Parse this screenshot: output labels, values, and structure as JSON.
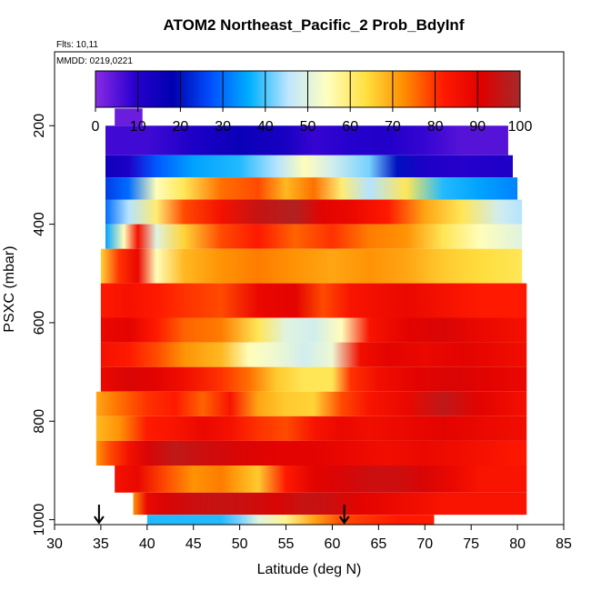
{
  "chart_data": {
    "type": "heatmap",
    "title": "ATOM2 Northeast_Pacific_2 Prob_BdyInf",
    "annotations": [
      "Flts: 10,11",
      "MMDD: 0219,0221"
    ],
    "xlabel": "Latitude (deg N)",
    "ylabel": "PSXC (mbar)",
    "xlim": [
      30,
      85
    ],
    "ylim": [
      1010,
      50
    ],
    "y_inverted": true,
    "x_ticks": [
      30,
      35,
      40,
      45,
      50,
      55,
      60,
      65,
      70,
      75,
      80,
      85
    ],
    "y_ticks": [
      200,
      400,
      600,
      800,
      1000
    ],
    "colorbar": {
      "min": 0,
      "max": 100,
      "ticks": [
        0,
        10,
        20,
        30,
        40,
        50,
        60,
        70,
        80,
        90,
        100
      ],
      "colors": [
        "#8a2be2",
        "#2a00d0",
        "#0000b0",
        "#0050ff",
        "#00b0ff",
        "#bfe6ff",
        "#ffffc0",
        "#ffe040",
        "#ff8c00",
        "#ff1a00",
        "#e00000",
        "#a52a2a"
      ]
    },
    "arrows_latitude": [
      34.8,
      61.3
    ],
    "bands": [
      {
        "p_top": 165,
        "p_bot": 200,
        "x_start": 36.5,
        "x_end": 39.5,
        "values": [
          [
            36.5,
            3
          ],
          [
            39.5,
            3
          ]
        ]
      },
      {
        "p_top": 200,
        "p_bot": 260,
        "x_start": 35.5,
        "x_end": 79.0,
        "values": [
          [
            35.5,
            7
          ],
          [
            40,
            7
          ],
          [
            45,
            12
          ],
          [
            50,
            16
          ],
          [
            55,
            13
          ],
          [
            58,
            8
          ],
          [
            62,
            10
          ],
          [
            66,
            11
          ],
          [
            70,
            8
          ],
          [
            74,
            5
          ],
          [
            79,
            5
          ]
        ]
      },
      {
        "p_top": 260,
        "p_bot": 305,
        "x_start": 35.5,
        "x_end": 79.5,
        "values": [
          [
            35.5,
            15
          ],
          [
            38,
            12
          ],
          [
            41,
            28
          ],
          [
            45,
            35
          ],
          [
            50,
            38
          ],
          [
            54,
            45
          ],
          [
            57,
            55
          ],
          [
            60,
            48
          ],
          [
            64,
            42
          ],
          [
            67,
            20
          ],
          [
            70,
            12
          ],
          [
            74,
            10
          ],
          [
            79.5,
            12
          ]
        ]
      },
      {
        "p_top": 305,
        "p_bot": 350,
        "x_start": 35.5,
        "x_end": 80.0,
        "values": [
          [
            35.5,
            25
          ],
          [
            38,
            30
          ],
          [
            41,
            55
          ],
          [
            44,
            62
          ],
          [
            48,
            75
          ],
          [
            52,
            78
          ],
          [
            55,
            68
          ],
          [
            58,
            75
          ],
          [
            61,
            60
          ],
          [
            64,
            45
          ],
          [
            68,
            62
          ],
          [
            72,
            38
          ],
          [
            76,
            35
          ],
          [
            80,
            32
          ]
        ]
      },
      {
        "p_top": 350,
        "p_bot": 400,
        "x_start": 35.5,
        "x_end": 80.5,
        "values": [
          [
            35.5,
            30
          ],
          [
            38,
            45
          ],
          [
            41,
            60
          ],
          [
            44,
            78
          ],
          [
            48,
            85
          ],
          [
            52,
            95
          ],
          [
            56,
            98
          ],
          [
            59,
            90
          ],
          [
            62,
            88
          ],
          [
            66,
            82
          ],
          [
            70,
            70
          ],
          [
            74,
            62
          ],
          [
            78,
            48
          ],
          [
            80.5,
            45
          ]
        ]
      },
      {
        "p_top": 400,
        "p_bot": 450,
        "x_start": 35.5,
        "x_end": 80.5,
        "values": [
          [
            35.5,
            35
          ],
          [
            37.5,
            55
          ],
          [
            39,
            85
          ],
          [
            41,
            50
          ],
          [
            44,
            65
          ],
          [
            48,
            78
          ],
          [
            52,
            82
          ],
          [
            56,
            76
          ],
          [
            60,
            80
          ],
          [
            64,
            74
          ],
          [
            68,
            72
          ],
          [
            72,
            62
          ],
          [
            76,
            55
          ],
          [
            80.5,
            50
          ]
        ]
      },
      {
        "p_top": 450,
        "p_bot": 520,
        "x_start": 35.0,
        "x_end": 80.5,
        "values": [
          [
            35,
            65
          ],
          [
            37,
            80
          ],
          [
            39,
            88
          ],
          [
            41,
            55
          ],
          [
            44,
            68
          ],
          [
            48,
            72
          ],
          [
            52,
            74
          ],
          [
            56,
            72
          ],
          [
            60,
            70
          ],
          [
            64,
            72
          ],
          [
            68,
            70
          ],
          [
            72,
            66
          ],
          [
            76,
            64
          ],
          [
            80.5,
            62
          ]
        ]
      },
      {
        "p_top": 520,
        "p_bot": 590,
        "x_start": 35.0,
        "x_end": 81.0,
        "values": [
          [
            35,
            82
          ],
          [
            38,
            85
          ],
          [
            41,
            82
          ],
          [
            44,
            80
          ],
          [
            48,
            78
          ],
          [
            52,
            88
          ],
          [
            56,
            90
          ],
          [
            59,
            78
          ],
          [
            62,
            84
          ],
          [
            65,
            86
          ],
          [
            68,
            88
          ],
          [
            72,
            85
          ],
          [
            76,
            82
          ],
          [
            81,
            82
          ]
        ]
      },
      {
        "p_top": 590,
        "p_bot": 640,
        "x_start": 35.0,
        "x_end": 81.0,
        "values": [
          [
            35,
            88
          ],
          [
            38,
            90
          ],
          [
            41,
            82
          ],
          [
            44,
            76
          ],
          [
            48,
            74
          ],
          [
            52,
            62
          ],
          [
            55,
            50
          ],
          [
            58,
            48
          ],
          [
            61,
            55
          ],
          [
            64,
            84
          ],
          [
            68,
            90
          ],
          [
            72,
            92
          ],
          [
            76,
            88
          ],
          [
            81,
            85
          ]
        ]
      },
      {
        "p_top": 640,
        "p_bot": 690,
        "x_start": 35.0,
        "x_end": 81.0,
        "values": [
          [
            35,
            85
          ],
          [
            38,
            82
          ],
          [
            41,
            78
          ],
          [
            44,
            72
          ],
          [
            48,
            68
          ],
          [
            51,
            55
          ],
          [
            54,
            52
          ],
          [
            57,
            48
          ],
          [
            60,
            52
          ],
          [
            63,
            86
          ],
          [
            66,
            90
          ],
          [
            70,
            88
          ],
          [
            74,
            90
          ],
          [
            81,
            86
          ]
        ]
      },
      {
        "p_top": 690,
        "p_bot": 740,
        "x_start": 35.0,
        "x_end": 81.0,
        "values": [
          [
            35,
            88
          ],
          [
            38,
            92
          ],
          [
            41,
            90
          ],
          [
            44,
            86
          ],
          [
            48,
            80
          ],
          [
            51,
            75
          ],
          [
            54,
            66
          ],
          [
            57,
            62
          ],
          [
            60,
            62
          ],
          [
            62,
            80
          ],
          [
            65,
            86
          ],
          [
            69,
            90
          ],
          [
            73,
            92
          ],
          [
            77,
            90
          ],
          [
            81,
            88
          ]
        ]
      },
      {
        "p_top": 740,
        "p_bot": 790,
        "x_start": 34.5,
        "x_end": 81.0,
        "values": [
          [
            34.5,
            70
          ],
          [
            37,
            75
          ],
          [
            40,
            80
          ],
          [
            43,
            82
          ],
          [
            46,
            76
          ],
          [
            49,
            84
          ],
          [
            52,
            70
          ],
          [
            55,
            66
          ],
          [
            58,
            65
          ],
          [
            61,
            78
          ],
          [
            64,
            84
          ],
          [
            68,
            88
          ],
          [
            72,
            96
          ],
          [
            76,
            90
          ],
          [
            81,
            85
          ]
        ]
      },
      {
        "p_top": 790,
        "p_bot": 840,
        "x_start": 34.5,
        "x_end": 81.0,
        "values": [
          [
            34.5,
            68
          ],
          [
            37,
            72
          ],
          [
            40,
            82
          ],
          [
            43,
            84
          ],
          [
            46,
            88
          ],
          [
            49,
            85
          ],
          [
            52,
            80
          ],
          [
            55,
            78
          ],
          [
            58,
            84
          ],
          [
            61,
            88
          ],
          [
            64,
            86
          ],
          [
            68,
            88
          ],
          [
            72,
            90
          ],
          [
            76,
            88
          ],
          [
            81,
            86
          ]
        ]
      },
      {
        "p_top": 840,
        "p_bot": 890,
        "x_start": 34.5,
        "x_end": 81.0,
        "values": [
          [
            34.5,
            72
          ],
          [
            36,
            78
          ],
          [
            38,
            85
          ],
          [
            40,
            92
          ],
          [
            43,
            96
          ],
          [
            46,
            94
          ],
          [
            50,
            92
          ],
          [
            54,
            90
          ],
          [
            58,
            90
          ],
          [
            62,
            88
          ],
          [
            66,
            86
          ],
          [
            70,
            88
          ],
          [
            74,
            86
          ],
          [
            78,
            84
          ],
          [
            81,
            82
          ]
        ]
      },
      {
        "p_top": 890,
        "p_bot": 945,
        "x_start": 36.5,
        "x_end": 81.0,
        "values": [
          [
            36.5,
            85
          ],
          [
            39,
            88
          ],
          [
            42,
            78
          ],
          [
            45,
            72
          ],
          [
            48,
            74
          ],
          [
            50,
            70
          ],
          [
            52,
            66
          ],
          [
            55,
            82
          ],
          [
            58,
            90
          ],
          [
            61,
            92
          ],
          [
            64,
            94
          ],
          [
            67,
            94
          ],
          [
            70,
            92
          ],
          [
            73,
            88
          ],
          [
            76,
            84
          ],
          [
            81,
            84
          ]
        ]
      },
      {
        "p_top": 945,
        "p_bot": 990,
        "x_start": 38.5,
        "x_end": 81.0,
        "values": [
          [
            38.5,
            72
          ],
          [
            40,
            88
          ],
          [
            42,
            92
          ],
          [
            45,
            94
          ],
          [
            48,
            95
          ],
          [
            51,
            94
          ],
          [
            54,
            92
          ],
          [
            57,
            95
          ],
          [
            60,
            94
          ],
          [
            63,
            90
          ],
          [
            66,
            88
          ],
          [
            69,
            86
          ],
          [
            72,
            84
          ],
          [
            76,
            84
          ],
          [
            81,
            84
          ]
        ]
      },
      {
        "p_top": 990,
        "p_bot": 1010,
        "x_start": 40.0,
        "x_end": 71.0,
        "values": [
          [
            40,
            38
          ],
          [
            44,
            38
          ],
          [
            48,
            38
          ],
          [
            50,
            42
          ],
          [
            52,
            50
          ],
          [
            55,
            58
          ],
          [
            58,
            70
          ],
          [
            61,
            78
          ],
          [
            64,
            80
          ],
          [
            67,
            82
          ],
          [
            71,
            82
          ]
        ]
      }
    ]
  }
}
